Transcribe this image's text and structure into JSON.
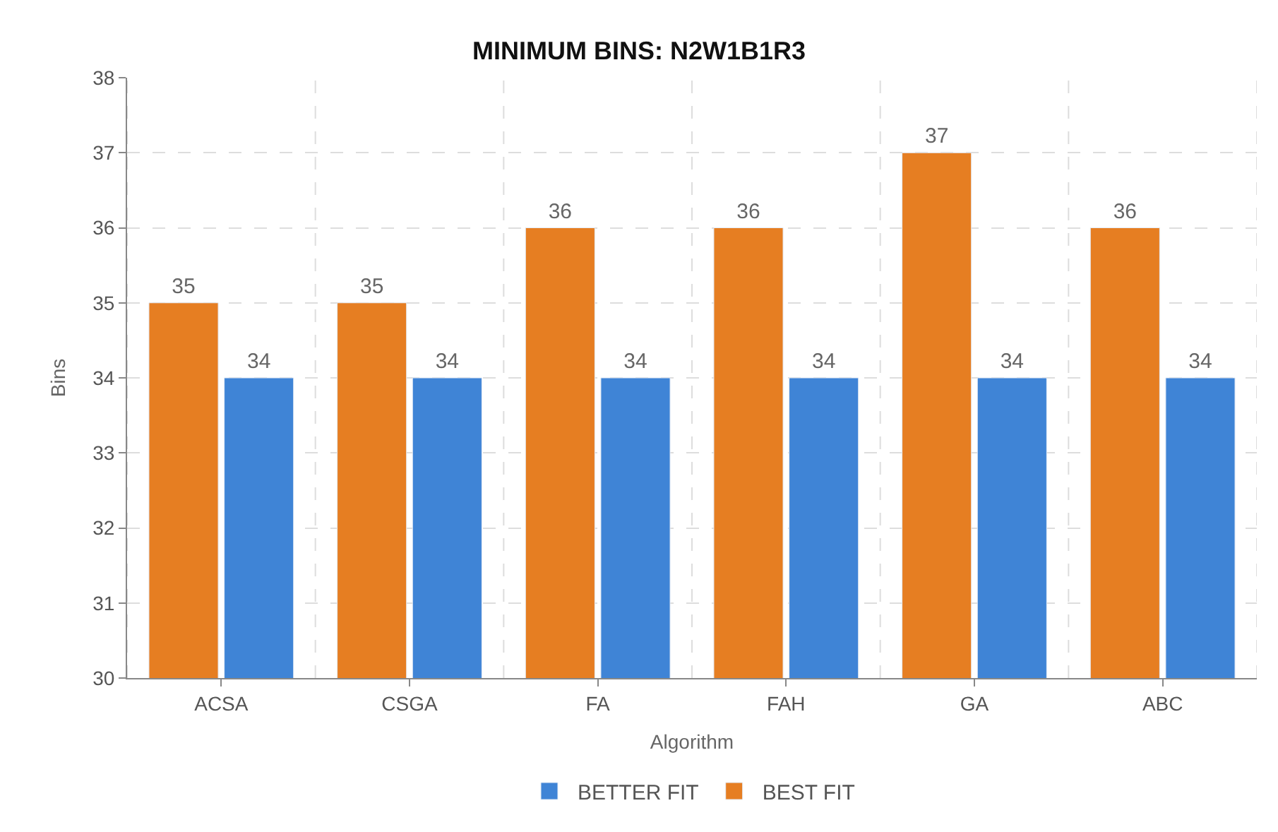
{
  "chart_data": {
    "type": "bar",
    "title": "MINIMUM BINS: N2W1B1R3",
    "xlabel": "Algorithm",
    "ylabel": "Bins",
    "categories": [
      "ACSA",
      "CSGA",
      "FA",
      "FAH",
      "GA",
      "ABC"
    ],
    "series": [
      {
        "name": "BEST FIT",
        "color": "#e67e22",
        "values": [
          35,
          35,
          36,
          36,
          37,
          36
        ]
      },
      {
        "name": "BETTER FIT",
        "color": "#3f84d6",
        "values": [
          34,
          34,
          34,
          34,
          34,
          34
        ]
      }
    ],
    "ylim": [
      30,
      38
    ],
    "yticks": [
      30,
      31,
      32,
      33,
      34,
      35,
      36,
      37,
      38
    ],
    "grid": true,
    "legend": "bottom",
    "data_labels": true
  }
}
